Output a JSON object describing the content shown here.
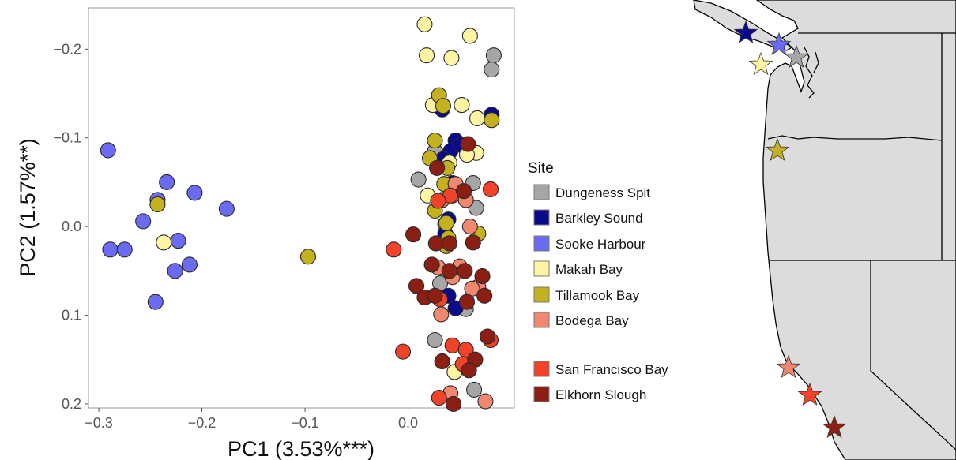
{
  "chart_data": {
    "type": "scatter",
    "xlabel": "PC1 (3.53%***)",
    "ylabel": "PC2 (1.57%**)",
    "xlim": [
      -0.31,
      0.103
    ],
    "ylim": [
      -0.2465,
      0.2045
    ],
    "y_reversed": true,
    "grid": false,
    "x_ticks": [
      -0.3,
      -0.2,
      -0.1,
      0.0
    ],
    "x_tick_labels": [
      "−0.3",
      "−0.2",
      "−0.1",
      "0.0"
    ],
    "y_ticks": [
      -0.2,
      -0.1,
      0.0,
      0.1,
      0.2
    ],
    "y_tick_labels": [
      "−0.2",
      "−0.1",
      "0.0",
      "0.1",
      "0.2"
    ],
    "legend_title": "Site",
    "legend_position": "right",
    "series": [
      {
        "name": "Dungeness Spit",
        "color": "#a6a6a6",
        "points": [
          [
            0.083,
            -0.193
          ],
          [
            0.081,
            -0.177
          ],
          [
            0.026,
            -0.085
          ],
          [
            0.01,
            -0.053
          ],
          [
            0.035,
            -0.068
          ],
          [
            0.063,
            -0.049
          ],
          [
            0.066,
            -0.021
          ],
          [
            0.031,
            0.064
          ],
          [
            0.056,
            0.093
          ],
          [
            0.026,
            0.128
          ],
          [
            0.064,
            0.184
          ],
          [
            0.036,
            -0.003
          ]
        ]
      },
      {
        "name": "Barkley Sound",
        "color": "#0a0a8a",
        "points": [
          [
            0.033,
            -0.132
          ],
          [
            0.081,
            -0.126
          ],
          [
            0.046,
            -0.097
          ],
          [
            0.041,
            -0.085
          ],
          [
            0.034,
            -0.076
          ],
          [
            0.043,
            -0.049
          ],
          [
            0.036,
            0.008
          ],
          [
            0.039,
            0.078
          ],
          [
            0.046,
            0.092
          ],
          [
            0.039,
            -0.008
          ],
          [
            0.051,
            -0.092
          ]
        ]
      },
      {
        "name": "Sooke Harbour",
        "color": "#6b6bf2",
        "points": [
          [
            -0.291,
            -0.086
          ],
          [
            -0.234,
            -0.05
          ],
          [
            -0.207,
            -0.038
          ],
          [
            -0.176,
            -0.02
          ],
          [
            -0.243,
            -0.03
          ],
          [
            -0.257,
            -0.006
          ],
          [
            -0.223,
            0.016
          ],
          [
            -0.289,
            0.026
          ],
          [
            -0.275,
            0.026
          ],
          [
            -0.226,
            0.05
          ],
          [
            -0.212,
            0.043
          ],
          [
            -0.245,
            0.085
          ]
        ]
      },
      {
        "name": "Makah Bay",
        "color": "#fdf5a3",
        "points": [
          [
            0.016,
            -0.228
          ],
          [
            0.06,
            -0.215
          ],
          [
            0.018,
            -0.193
          ],
          [
            0.042,
            -0.19
          ],
          [
            0.024,
            -0.137
          ],
          [
            0.052,
            -0.137
          ],
          [
            0.067,
            -0.122
          ],
          [
            0.066,
            -0.083
          ],
          [
            0.057,
            -0.081
          ],
          [
            0.04,
            -0.072
          ],
          [
            0.019,
            -0.035
          ],
          [
            -0.237,
            0.018
          ],
          [
            0.045,
            0.164
          ]
        ]
      },
      {
        "name": "Tillamook Bay",
        "color": "#c4b11e",
        "points": [
          [
            0.03,
            -0.148
          ],
          [
            0.034,
            -0.136
          ],
          [
            0.081,
            -0.12
          ],
          [
            0.026,
            -0.097
          ],
          [
            0.021,
            -0.077
          ],
          [
            0.038,
            -0.066
          ],
          [
            0.035,
            -0.048
          ],
          [
            0.043,
            -0.035
          ],
          [
            0.026,
            -0.018
          ],
          [
            0.037,
            -0.004
          ],
          [
            0.039,
            0.013
          ],
          [
            0.068,
            0.008
          ],
          [
            0.037,
            0.022
          ],
          [
            -0.243,
            -0.025
          ],
          [
            -0.097,
            0.034
          ]
        ]
      },
      {
        "name": "Bodega Bay",
        "color": "#f28770",
        "points": [
          [
            0.046,
            -0.048
          ],
          [
            0.033,
            -0.03
          ],
          [
            0.056,
            -0.03
          ],
          [
            0.06,
            0.0
          ],
          [
            0.029,
            0.046
          ],
          [
            0.05,
            0.045
          ],
          [
            0.043,
            0.057
          ],
          [
            0.068,
            0.068
          ],
          [
            0.062,
            0.07
          ],
          [
            0.032,
            0.099
          ],
          [
            0.041,
            0.188
          ],
          [
            0.075,
            0.197
          ]
        ]
      },
      {
        "name": "San Francisco Bay",
        "color": "#f0432a",
        "points": [
          [
            0.08,
            -0.042
          ],
          [
            0.041,
            -0.035
          ],
          [
            0.029,
            -0.029
          ],
          [
            -0.014,
            0.026
          ],
          [
            0.031,
            0.082
          ],
          [
            0.043,
            0.134
          ],
          [
            0.056,
            0.139
          ],
          [
            0.08,
            0.128
          ],
          [
            -0.005,
            0.141
          ],
          [
            0.053,
            0.155
          ],
          [
            0.03,
            0.193
          ]
        ]
      },
      {
        "name": "Elkhorn Slough",
        "color": "#8b1f14",
        "points": [
          [
            0.058,
            -0.093
          ],
          [
            0.028,
            -0.066
          ],
          [
            0.054,
            -0.04
          ],
          [
            0.027,
            0.019
          ],
          [
            0.063,
            0.018
          ],
          [
            0.005,
            0.009
          ],
          [
            0.04,
            0.019
          ],
          [
            0.023,
            0.043
          ],
          [
            0.04,
            0.05
          ],
          [
            0.055,
            0.05
          ],
          [
            0.072,
            0.056
          ],
          [
            0.008,
            0.067
          ],
          [
            0.016,
            0.08
          ],
          [
            0.026,
            0.078
          ],
          [
            0.074,
            0.078
          ],
          [
            0.057,
            0.085
          ],
          [
            0.077,
            0.124
          ],
          [
            0.033,
            0.152
          ],
          [
            0.065,
            0.15
          ],
          [
            0.059,
            0.162
          ],
          [
            0.044,
            0.2
          ]
        ]
      }
    ]
  },
  "map": {
    "markers": [
      {
        "site": "Barkley Sound",
        "color": "#0a0a8a"
      },
      {
        "site": "Sooke Harbour",
        "color": "#6b6bf2"
      },
      {
        "site": "Dungeness Spit",
        "color": "#a6a6a6"
      },
      {
        "site": "Makah Bay",
        "color": "#fdf5a3"
      },
      {
        "site": "Tillamook Bay",
        "color": "#c4b11e"
      },
      {
        "site": "Bodega Bay",
        "color": "#f28770"
      },
      {
        "site": "San Francisco Bay",
        "color": "#f0432a"
      },
      {
        "site": "Elkhorn Slough",
        "color": "#8b1f14"
      }
    ]
  }
}
